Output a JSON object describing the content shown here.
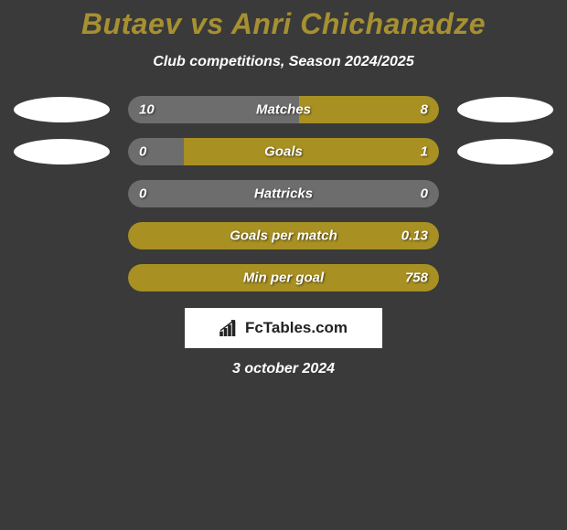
{
  "title": "Butaev vs Anri Chichanadze",
  "subtitle": "Club competitions, Season 2024/2025",
  "colors": {
    "background": "#3a3a3a",
    "title_color": "#a79031",
    "text_color": "#ffffff",
    "bar_track": "#545454",
    "left_fill": "#6d6d6d",
    "right_fill": "#a89022",
    "ellipse_left": "#ffffff",
    "ellipse_right": "#ffffff",
    "brand_bg": "#ffffff",
    "brand_text": "#222222"
  },
  "typography": {
    "title_fontsize": 32,
    "subtitle_fontsize": 16,
    "bar_label_fontsize": 15,
    "date_fontsize": 16
  },
  "stats": [
    {
      "name": "Matches",
      "left_val": "10",
      "right_val": "8",
      "left_pct": 55,
      "right_pct": 45,
      "show_ellipses": true
    },
    {
      "name": "Goals",
      "left_val": "0",
      "right_val": "1",
      "left_pct": 18,
      "right_pct": 82,
      "show_ellipses": true
    },
    {
      "name": "Hattricks",
      "left_val": "0",
      "right_val": "0",
      "left_pct": 50,
      "right_pct": 50,
      "show_ellipses": false,
      "neutral": true
    },
    {
      "name": "Goals per match",
      "left_val": "",
      "right_val": "0.13",
      "left_pct": 0,
      "right_pct": 100,
      "show_ellipses": false
    },
    {
      "name": "Min per goal",
      "left_val": "",
      "right_val": "758",
      "left_pct": 0,
      "right_pct": 100,
      "show_ellipses": false
    }
  ],
  "branding": "FcTables.com",
  "date": "3 october 2024"
}
